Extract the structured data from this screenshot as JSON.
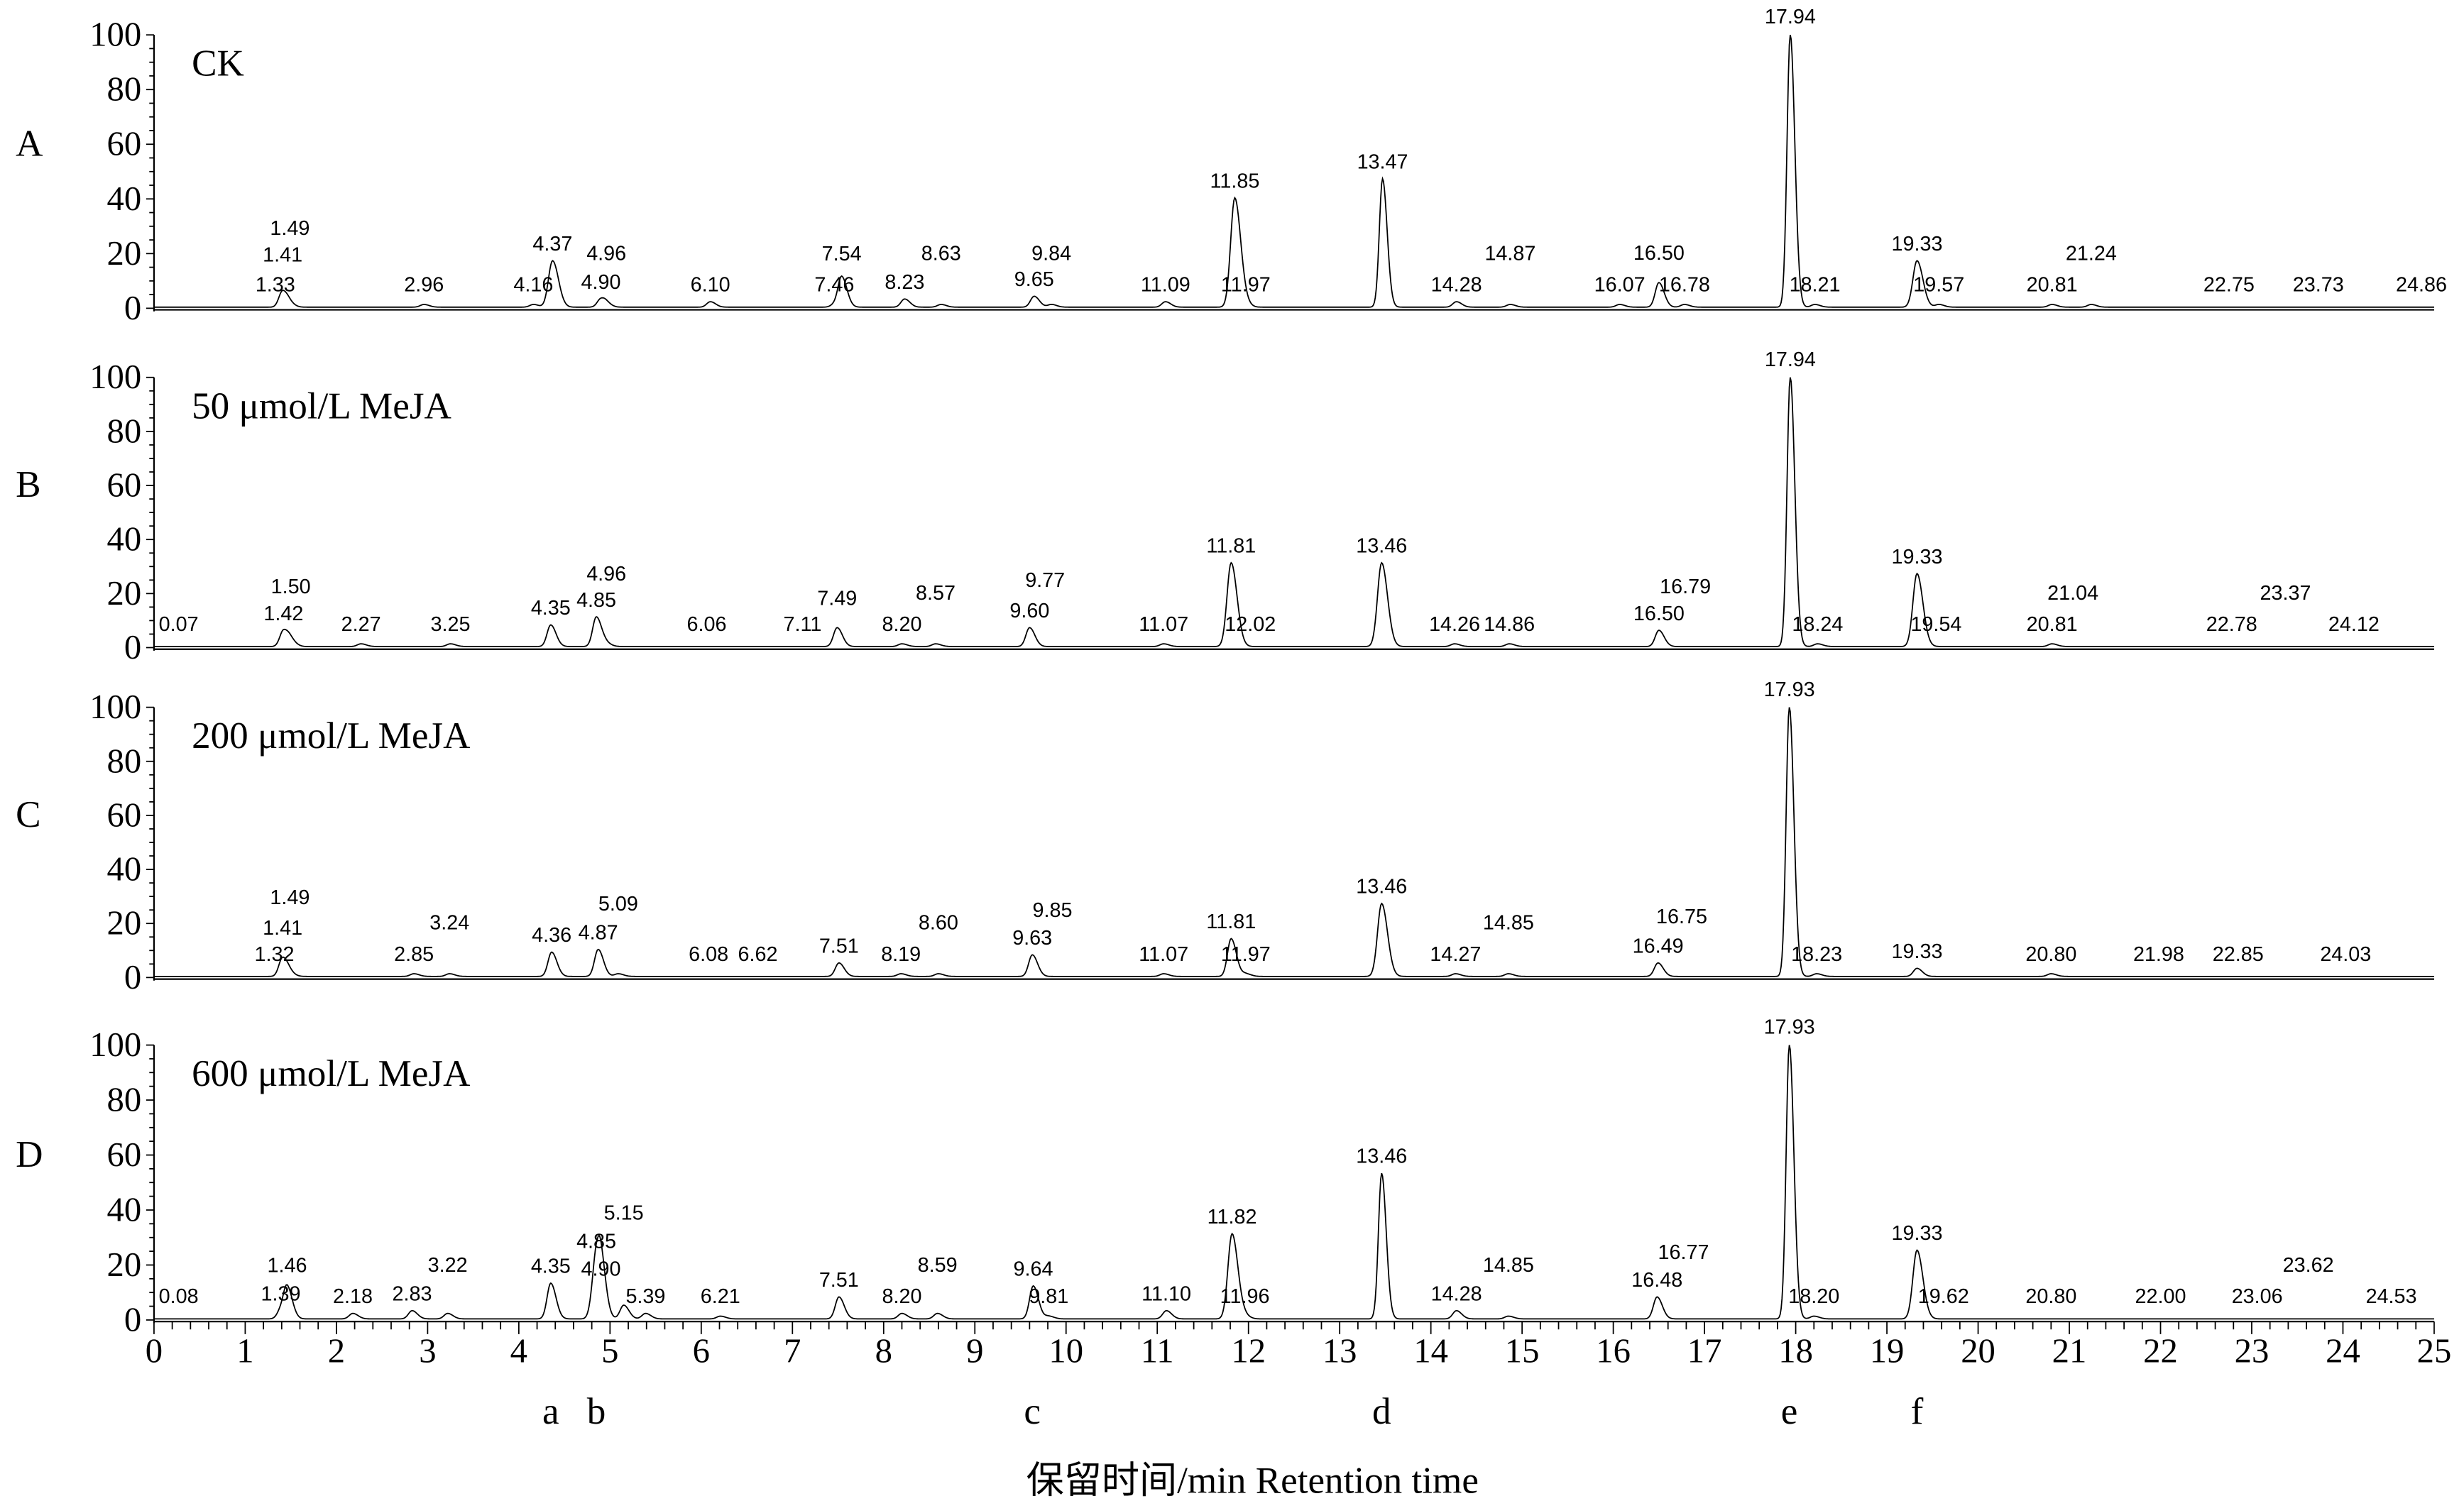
{
  "chart_data": {
    "type": "line",
    "xlabel": "保留时间/min Retention time",
    "xlim": [
      0,
      25
    ],
    "ylim": [
      0,
      100
    ],
    "xticks": [
      0,
      1,
      2,
      3,
      4,
      5,
      6,
      7,
      8,
      9,
      10,
      11,
      12,
      13,
      14,
      15,
      16,
      17,
      18,
      19,
      20,
      21,
      22,
      23,
      24,
      25
    ],
    "yticks": [
      0,
      20,
      40,
      60,
      80,
      100
    ],
    "grid": false,
    "line_color": "#000000",
    "peak_markers": [
      {
        "label": "a",
        "x": 4.35
      },
      {
        "label": "b",
        "x": 4.85
      },
      {
        "label": "c",
        "x": 9.63
      },
      {
        "label": "d",
        "x": 13.46
      },
      {
        "label": "e",
        "x": 17.93
      },
      {
        "label": "f",
        "x": 19.33
      }
    ],
    "panels": [
      {
        "letter": "A",
        "title": "CK",
        "peaks": [
          [
            "1.33",
            0
          ],
          [
            "1.41",
            6
          ],
          [
            "1.49",
            1
          ],
          [
            "2.96",
            1
          ],
          [
            "4.16",
            1
          ],
          [
            "4.37",
            17
          ],
          [
            "4.90",
            3
          ],
          [
            "4.96",
            1
          ],
          [
            "6.10",
            2
          ],
          [
            "7.46",
            1
          ],
          [
            "7.54",
            11
          ],
          [
            "8.23",
            3
          ],
          [
            "8.63",
            1
          ],
          [
            "9.65",
            4
          ],
          [
            "9.84",
            1
          ],
          [
            "11.09",
            2
          ],
          [
            "11.85",
            40
          ],
          [
            "11.97",
            1
          ],
          [
            "13.47",
            47
          ],
          [
            "14.28",
            2
          ],
          [
            "14.87",
            1
          ],
          [
            "16.07",
            1
          ],
          [
            "16.50",
            9
          ],
          [
            "16.78",
            1
          ],
          [
            "17.94",
            100
          ],
          [
            "18.21",
            1
          ],
          [
            "19.33",
            17
          ],
          [
            "19.57",
            1
          ],
          [
            "20.81",
            1
          ],
          [
            "21.24",
            1
          ],
          [
            "22.75",
            0
          ],
          [
            "23.73",
            0
          ],
          [
            "24.86",
            0
          ]
        ]
      },
      {
        "letter": "B",
        "title": "50 μmol/L MeJA",
        "peaks": [
          [
            "0.07",
            0
          ],
          [
            "1.42",
            6
          ],
          [
            "1.50",
            2
          ],
          [
            "2.27",
            1
          ],
          [
            "3.25",
            1
          ],
          [
            "4.35",
            8
          ],
          [
            "4.85",
            11
          ],
          [
            "4.96",
            1
          ],
          [
            "6.06",
            0
          ],
          [
            "7.11",
            0
          ],
          [
            "7.49",
            7
          ],
          [
            "8.20",
            1
          ],
          [
            "8.57",
            1
          ],
          [
            "9.60",
            7
          ],
          [
            "9.77",
            0
          ],
          [
            "11.07",
            1
          ],
          [
            "11.81",
            31
          ],
          [
            "12.02",
            0
          ],
          [
            "13.46",
            31
          ],
          [
            "14.26",
            1
          ],
          [
            "14.86",
            1
          ],
          [
            "16.50",
            6
          ],
          [
            "16.79",
            0
          ],
          [
            "17.94",
            100
          ],
          [
            "18.24",
            1
          ],
          [
            "19.33",
            27
          ],
          [
            "19.54",
            0
          ],
          [
            "20.81",
            1
          ],
          [
            "21.04",
            0
          ],
          [
            "22.78",
            0
          ],
          [
            "23.37",
            0
          ],
          [
            "24.12",
            0
          ]
        ]
      },
      {
        "letter": "C",
        "title": "200 μmol/L MeJA",
        "peaks": [
          [
            "1.32",
            0
          ],
          [
            "1.41",
            7
          ],
          [
            "1.49",
            1
          ],
          [
            "2.85",
            1
          ],
          [
            "3.24",
            1
          ],
          [
            "4.36",
            9
          ],
          [
            "4.87",
            10
          ],
          [
            "5.09",
            1
          ],
          [
            "6.08",
            0
          ],
          [
            "6.62",
            0
          ],
          [
            "7.51",
            5
          ],
          [
            "8.19",
            1
          ],
          [
            "8.60",
            1
          ],
          [
            "9.63",
            8
          ],
          [
            "9.85",
            0
          ],
          [
            "11.07",
            1
          ],
          [
            "11.81",
            14
          ],
          [
            "11.97",
            1
          ],
          [
            "13.46",
            27
          ],
          [
            "14.27",
            1
          ],
          [
            "14.85",
            1
          ],
          [
            "16.49",
            5
          ],
          [
            "16.75",
            0
          ],
          [
            "17.93",
            100
          ],
          [
            "18.23",
            1
          ],
          [
            "19.33",
            3
          ],
          [
            "20.80",
            1
          ],
          [
            "21.98",
            0
          ],
          [
            "22.85",
            0
          ],
          [
            "24.03",
            0
          ]
        ]
      },
      {
        "letter": "D",
        "title": "600 μmol/L MeJA",
        "peaks": [
          [
            "0.08",
            0
          ],
          [
            "1.39",
            3
          ],
          [
            "1.46",
            11
          ],
          [
            "2.18",
            2
          ],
          [
            "2.83",
            3
          ],
          [
            "3.22",
            2
          ],
          [
            "4.35",
            13
          ],
          [
            "4.85",
            22
          ],
          [
            "4.90",
            12
          ],
          [
            "5.15",
            5
          ],
          [
            "5.39",
            2
          ],
          [
            "6.21",
            1
          ],
          [
            "7.51",
            8
          ],
          [
            "8.20",
            2
          ],
          [
            "8.59",
            2
          ],
          [
            "9.64",
            12
          ],
          [
            "9.81",
            1
          ],
          [
            "11.10",
            3
          ],
          [
            "11.82",
            31
          ],
          [
            "11.96",
            1
          ],
          [
            "13.46",
            53
          ],
          [
            "14.28",
            3
          ],
          [
            "14.85",
            1
          ],
          [
            "16.48",
            8
          ],
          [
            "16.77",
            0
          ],
          [
            "17.93",
            100
          ],
          [
            "18.20",
            1
          ],
          [
            "19.33",
            25
          ],
          [
            "19.62",
            0
          ],
          [
            "20.80",
            0
          ],
          [
            "22.00",
            0
          ],
          [
            "23.06",
            0
          ],
          [
            "23.62",
            0
          ],
          [
            "24.53",
            0
          ]
        ]
      }
    ]
  }
}
